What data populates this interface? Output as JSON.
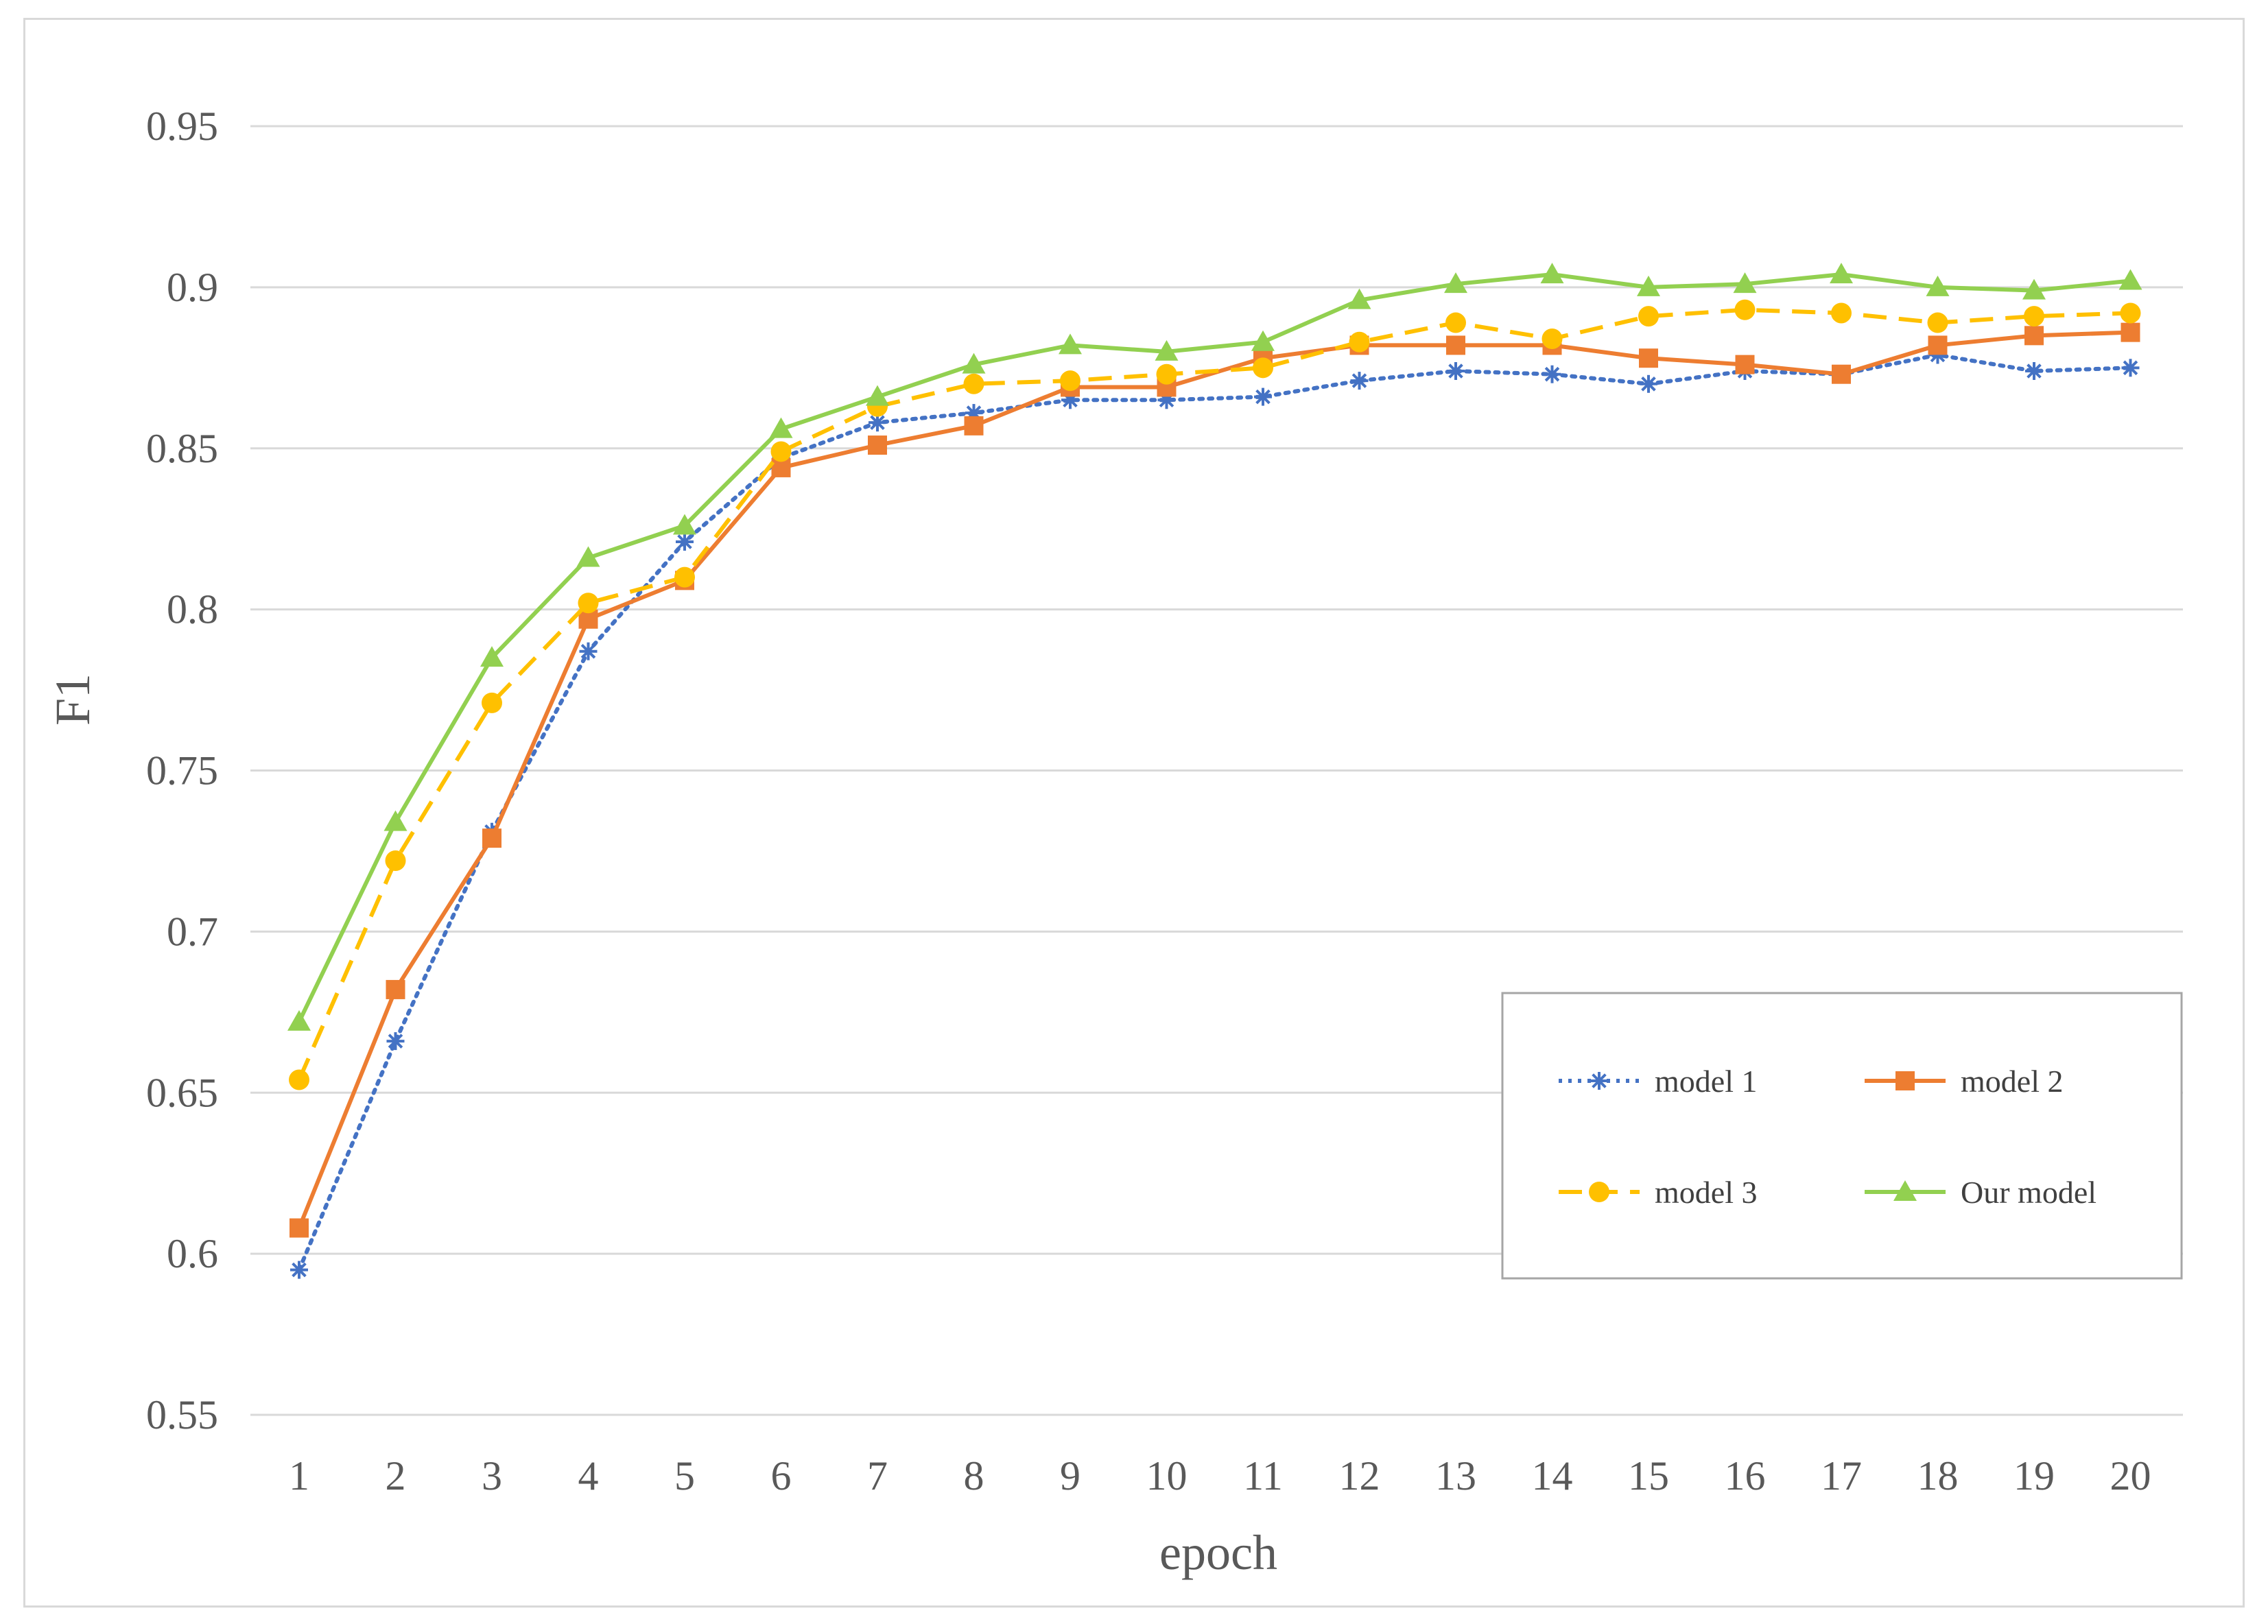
{
  "chart_data": {
    "type": "line",
    "title": "",
    "xlabel": "epoch",
    "ylabel": "F1",
    "categories": [
      "1",
      "2",
      "3",
      "4",
      "5",
      "6",
      "7",
      "8",
      "9",
      "10",
      "11",
      "12",
      "13",
      "14",
      "15",
      "16",
      "17",
      "18",
      "19",
      "20"
    ],
    "ylim": [
      0.55,
      0.95
    ],
    "yticks": [
      0.55,
      0.6,
      0.65,
      0.7,
      0.75,
      0.8,
      0.85,
      0.9,
      0.95
    ],
    "ytick_labels": [
      "0.55",
      "0.6",
      "0.65",
      "0.7",
      "0.75",
      "0.8",
      "0.85",
      "0.9",
      "0.95"
    ],
    "grid": true,
    "legend_position": "bottom-right",
    "series": [
      {
        "name": "model 1",
        "color": "#4472c4",
        "line_style": "dotted",
        "marker": "asterisk",
        "values": [
          0.595,
          0.666,
          0.731,
          0.787,
          0.821,
          0.847,
          0.858,
          0.861,
          0.865,
          0.865,
          0.866,
          0.871,
          0.874,
          0.873,
          0.87,
          0.874,
          0.873,
          0.879,
          0.874,
          0.875
        ]
      },
      {
        "name": "model 2",
        "color": "#ed7d31",
        "line_style": "solid",
        "marker": "square",
        "values": [
          0.608,
          0.682,
          0.729,
          0.797,
          0.809,
          0.844,
          0.851,
          0.857,
          0.869,
          0.869,
          0.878,
          0.882,
          0.882,
          0.882,
          0.878,
          0.876,
          0.873,
          0.882,
          0.885,
          0.886
        ]
      },
      {
        "name": "model 3",
        "color": "#ffc000",
        "line_style": "dashed",
        "marker": "circle",
        "values": [
          0.654,
          0.722,
          0.771,
          0.802,
          0.81,
          0.849,
          0.863,
          0.87,
          0.871,
          0.873,
          0.875,
          0.883,
          0.889,
          0.884,
          0.891,
          0.893,
          0.892,
          0.889,
          0.891,
          0.892
        ]
      },
      {
        "name": "Our model",
        "color": "#92d050",
        "line_style": "solid",
        "marker": "triangle",
        "values": [
          0.672,
          0.734,
          0.785,
          0.816,
          0.826,
          0.856,
          0.866,
          0.876,
          0.882,
          0.88,
          0.883,
          0.896,
          0.901,
          0.904,
          0.9,
          0.901,
          0.904,
          0.9,
          0.899,
          0.902
        ]
      }
    ]
  }
}
